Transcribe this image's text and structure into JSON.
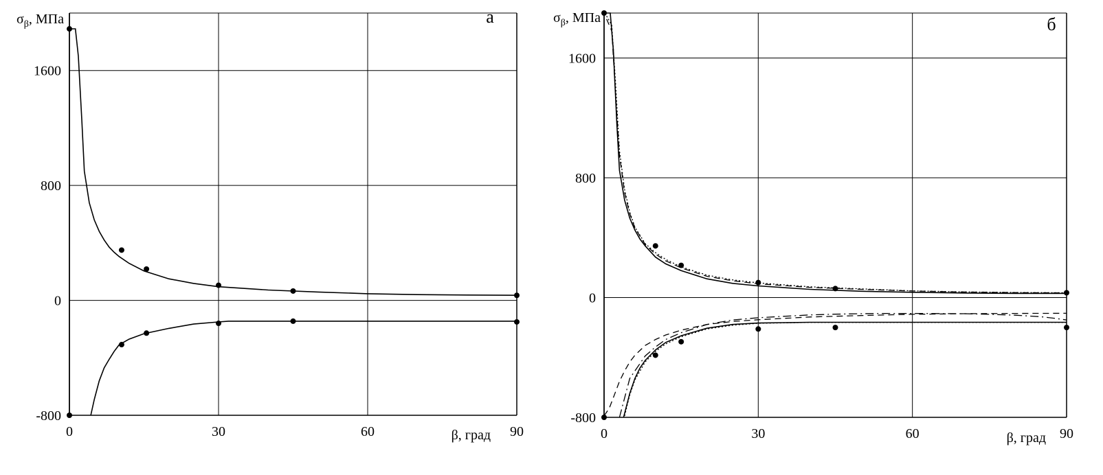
{
  "chart_data": [
    {
      "panel_label": "а",
      "type": "line",
      "ylabel": {
        "symbol": "σ",
        "sub": "β",
        "rest": ", МПа"
      },
      "xlabel": "β, град",
      "xlim": [
        0,
        90
      ],
      "ylim": [
        -800,
        2000
      ],
      "xticks": [
        {
          "v": 0,
          "label": "0"
        },
        {
          "v": 30,
          "label": "30"
        },
        {
          "v": 60,
          "label": "60"
        },
        {
          "v": 90,
          "label": "90"
        }
      ],
      "yticks": [
        {
          "v": -800,
          "label": "-800"
        },
        {
          "v": 0,
          "label": "0"
        },
        {
          "v": 800,
          "label": "800"
        },
        {
          "v": 1600,
          "label": "1600"
        }
      ],
      "grid": true,
      "series": [
        {
          "style": "solid",
          "x": [
            0.3,
            1.2,
            1.8,
            2.5,
            3,
            4,
            5,
            6,
            7,
            8,
            9,
            10,
            12,
            15,
            20,
            25,
            30,
            40,
            50,
            60,
            70,
            80,
            90
          ],
          "y": [
            1890,
            1890,
            1700,
            1250,
            900,
            680,
            560,
            480,
            420,
            370,
            335,
            305,
            258,
            205,
            150,
            118,
            95,
            72,
            58,
            46,
            40,
            37,
            35
          ]
        },
        {
          "style": "solid",
          "x": [
            4.3,
            5,
            6,
            7,
            8,
            9,
            10,
            12,
            15,
            20,
            25,
            30,
            32,
            40,
            50,
            60,
            70,
            80,
            90
          ],
          "y": [
            -800,
            -690,
            -560,
            -470,
            -410,
            -355,
            -310,
            -270,
            -232,
            -195,
            -165,
            -150,
            -145,
            -145,
            -145,
            -145,
            -145,
            -145,
            -145
          ]
        },
        {
          "style": "solid",
          "x": [
            0,
            90
          ],
          "y": [
            -800,
            -800
          ]
        }
      ],
      "points": [
        {
          "x": 0,
          "y": 1890
        },
        {
          "x": 10.5,
          "y": 350
        },
        {
          "x": 15.5,
          "y": 218
        },
        {
          "x": 30,
          "y": 105
        },
        {
          "x": 45,
          "y": 65
        },
        {
          "x": 90,
          "y": 35
        },
        {
          "x": 10.5,
          "y": -308
        },
        {
          "x": 15.5,
          "y": -228
        },
        {
          "x": 30,
          "y": -160
        },
        {
          "x": 45,
          "y": -145
        },
        {
          "x": 90,
          "y": -150
        },
        {
          "x": 0,
          "y": -800
        }
      ]
    },
    {
      "panel_label": "б",
      "type": "line",
      "ylabel": {
        "symbol": "σ",
        "sub": "β",
        "rest": ", МПа"
      },
      "xlabel": "β, град",
      "xlim": [
        0,
        90
      ],
      "ylim": [
        -800,
        1900
      ],
      "xticks": [
        {
          "v": 0,
          "label": "0"
        },
        {
          "v": 30,
          "label": "30"
        },
        {
          "v": 60,
          "label": "60"
        },
        {
          "v": 90,
          "label": "90"
        }
      ],
      "yticks": [
        {
          "v": -800,
          "label": "-800"
        },
        {
          "v": 0,
          "label": "0"
        },
        {
          "v": 800,
          "label": "800"
        },
        {
          "v": 1600,
          "label": "1600"
        }
      ],
      "grid": true,
      "series": [
        {
          "style": "solid",
          "x": [
            0.3,
            1.2,
            1.8,
            2.5,
            3,
            4,
            5,
            6,
            7,
            8,
            10,
            12,
            15,
            20,
            25,
            30,
            40,
            50,
            60,
            70,
            80,
            90
          ],
          "y": [
            1900,
            1900,
            1650,
            1150,
            850,
            650,
            530,
            450,
            390,
            345,
            270,
            225,
            180,
            125,
            95,
            78,
            55,
            42,
            35,
            30,
            28,
            28
          ]
        },
        {
          "style": "dotted",
          "x": [
            0.5,
            1.5,
            2.2,
            3,
            4,
            5,
            6,
            8,
            10,
            12,
            15,
            20,
            25,
            30,
            40,
            50,
            60,
            70,
            80,
            90
          ],
          "y": [
            1880,
            1820,
            1450,
            980,
            720,
            570,
            470,
            360,
            300,
            255,
            205,
            150,
            118,
            98,
            72,
            58,
            45,
            38,
            34,
            32
          ]
        },
        {
          "style": "dashed",
          "x": [
            0.5,
            1.5,
            2.2,
            3,
            4,
            5,
            6,
            8,
            10,
            12,
            15,
            20,
            25,
            30,
            40,
            50,
            60,
            70,
            80,
            90
          ],
          "y": [
            1860,
            1780,
            1380,
            950,
            700,
            560,
            465,
            355,
            290,
            245,
            198,
            142,
            112,
            92,
            68,
            55,
            44,
            37,
            33,
            31
          ]
        },
        {
          "style": "solid",
          "x": [
            3.8,
            5,
            6,
            7,
            8,
            10,
            12,
            15,
            20,
            25,
            30,
            40,
            50,
            60,
            70,
            80,
            90
          ],
          "y": [
            -800,
            -640,
            -540,
            -470,
            -420,
            -350,
            -300,
            -255,
            -205,
            -180,
            -170,
            -165,
            -165,
            -165,
            -165,
            -165,
            -165
          ]
        },
        {
          "style": "dotted",
          "x": [
            4,
            5,
            6,
            8,
            10,
            12,
            15,
            20,
            25,
            30,
            40,
            50,
            60,
            70,
            80,
            90
          ],
          "y": [
            -790,
            -650,
            -550,
            -430,
            -360,
            -310,
            -262,
            -210,
            -185,
            -172,
            -166,
            -166,
            -166,
            -166,
            -166,
            -166
          ]
        },
        {
          "style": "dashed",
          "x": [
            0,
            1,
            2,
            3,
            4,
            5,
            6,
            8,
            10,
            12,
            15,
            20,
            25,
            30,
            40,
            50,
            60,
            70,
            80,
            90
          ],
          "y": [
            -790,
            -740,
            -650,
            -560,
            -490,
            -430,
            -385,
            -320,
            -280,
            -250,
            -218,
            -180,
            -160,
            -148,
            -130,
            -120,
            -112,
            -108,
            -106,
            -105
          ]
        },
        {
          "style": "dashdot",
          "x": [
            3,
            5,
            8,
            10,
            12,
            15,
            20,
            25,
            30,
            35,
            40,
            45,
            50,
            55,
            60,
            65,
            70,
            75,
            80,
            85,
            88,
            90
          ],
          "y": [
            -800,
            -540,
            -390,
            -330,
            -280,
            -235,
            -180,
            -150,
            -135,
            -125,
            -116,
            -111,
            -108,
            -106,
            -106,
            -107,
            -108,
            -112,
            -118,
            -128,
            -140,
            -150
          ]
        },
        {
          "style": "solid",
          "x": [
            0,
            90
          ],
          "y": [
            -800,
            -800
          ]
        }
      ],
      "points": [
        {
          "x": 0,
          "y": 1900
        },
        {
          "x": 10,
          "y": 345
        },
        {
          "x": 15,
          "y": 215
        },
        {
          "x": 30,
          "y": 100
        },
        {
          "x": 45,
          "y": 60
        },
        {
          "x": 90,
          "y": 32
        },
        {
          "x": 10,
          "y": -385
        },
        {
          "x": 15,
          "y": -295
        },
        {
          "x": 30,
          "y": -210
        },
        {
          "x": 45,
          "y": -200
        },
        {
          "x": 90,
          "y": -200
        },
        {
          "x": 0,
          "y": -800
        }
      ]
    }
  ]
}
